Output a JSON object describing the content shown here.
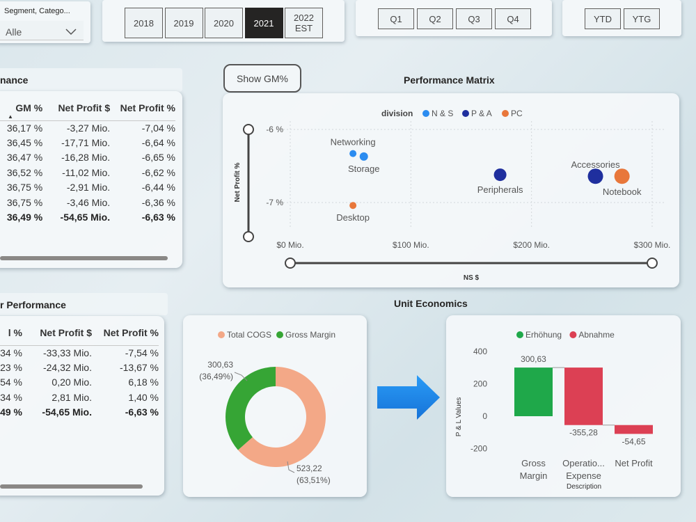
{
  "slicer": {
    "label": "Segment, Catego...",
    "value": "Alle"
  },
  "years": [
    "2018",
    "2019",
    "2020",
    "2021",
    "2022 EST"
  ],
  "selected_year": "2021",
  "quarters": [
    "Q1",
    "Q2",
    "Q3",
    "Q4"
  ],
  "periods": [
    "YTD",
    "YTG"
  ],
  "show_gm_button": "Show GM%",
  "table1": {
    "title": "nance",
    "headers": [
      "GM %",
      "Net Profit $",
      "Net Profit %"
    ],
    "rows": [
      [
        "36,17 %",
        "-3,27 Mio.",
        "-7,04 %"
      ],
      [
        "36,45 %",
        "-17,71 Mio.",
        "-6,64 %"
      ],
      [
        "36,47 %",
        "-16,28 Mio.",
        "-6,65 %"
      ],
      [
        "36,52 %",
        "-11,02 Mio.",
        "-6,62 %"
      ],
      [
        "36,75 %",
        "-2,91 Mio.",
        "-6,44 %"
      ],
      [
        "36,75 %",
        "-3,46 Mio.",
        "-6,36 %"
      ]
    ],
    "total": [
      "36,49 %",
      "-54,65 Mio.",
      "-6,63 %"
    ]
  },
  "table2": {
    "title": "r Performance",
    "headers": [
      "l %",
      "Net Profit $",
      "Net Profit %"
    ],
    "rows": [
      [
        "34 %",
        "-33,33 Mio.",
        "-7,54 %"
      ],
      [
        "23 %",
        "-24,32 Mio.",
        "-13,67 %"
      ],
      [
        "54 %",
        "0,20 Mio.",
        "6,18 %"
      ],
      [
        "34 %",
        "2,81 Mio.",
        "1,40 %"
      ]
    ],
    "total": [
      "49 %",
      "-54,65 Mio.",
      "-6,63 %"
    ]
  },
  "chart_data": [
    {
      "type": "scatter",
      "title": "Performance Matrix",
      "xlabel": "NS $",
      "ylabel": "Net Profit %",
      "x_ticks": [
        "$0 Mio.",
        "$100 Mio.",
        "$200 Mio.",
        "$300 Mio."
      ],
      "y_ticks": [
        "-6 %",
        "-7 %"
      ],
      "xlim": [
        0,
        300
      ],
      "ylim": [
        -7.5,
        -5.95
      ],
      "legend": {
        "title": "division",
        "items": [
          {
            "name": "N & S",
            "color": "#2b8cf0"
          },
          {
            "name": "P & A",
            "color": "#1f2f9e"
          },
          {
            "name": "PC",
            "color": "#e8773b"
          }
        ]
      },
      "points": [
        {
          "label": "Networking",
          "x": 52,
          "y": -6.33,
          "division": "N & S",
          "size": 5
        },
        {
          "label": "Storage",
          "x": 61,
          "y": -6.37,
          "division": "N & S",
          "size": 6
        },
        {
          "label": "Desktop",
          "x": 52,
          "y": -7.04,
          "division": "PC",
          "size": 5
        },
        {
          "label": "Peripherals",
          "x": 174,
          "y": -6.62,
          "division": "P & A",
          "size": 9
        },
        {
          "label": "Accessories",
          "x": 253,
          "y": -6.64,
          "division": "P & A",
          "size": 11
        },
        {
          "label": "Notebook",
          "x": 275,
          "y": -6.64,
          "division": "PC",
          "size": 11
        }
      ]
    },
    {
      "type": "pie",
      "title": "Unit Economics",
      "donut": true,
      "slices": [
        {
          "name": "Total COGS",
          "value": 523.22,
          "label": "523,22",
          "pct": "(63,51%)",
          "color": "#f3a887"
        },
        {
          "name": "Gross Margin",
          "value": 300.63,
          "label": "300,63",
          "pct": "(36,49%)",
          "color": "#36a535"
        }
      ]
    },
    {
      "type": "bar",
      "subtype": "waterfall",
      "xlabel": "Description",
      "ylabel": "P & L Values",
      "ylim": [
        -250,
        450
      ],
      "y_ticks": [
        400,
        200,
        0,
        -200
      ],
      "legend": [
        {
          "name": "Erhöhung",
          "color": "#1fa84a"
        },
        {
          "name": "Abnahme",
          "color": "#dc4054"
        }
      ],
      "categories": [
        "Gross Margin",
        "Operatio... Expense",
        "Net Profit"
      ],
      "values": [
        300.63,
        -355.28,
        -54.65
      ],
      "value_labels": [
        "300,63",
        "-355,28",
        "-54,65"
      ]
    }
  ]
}
